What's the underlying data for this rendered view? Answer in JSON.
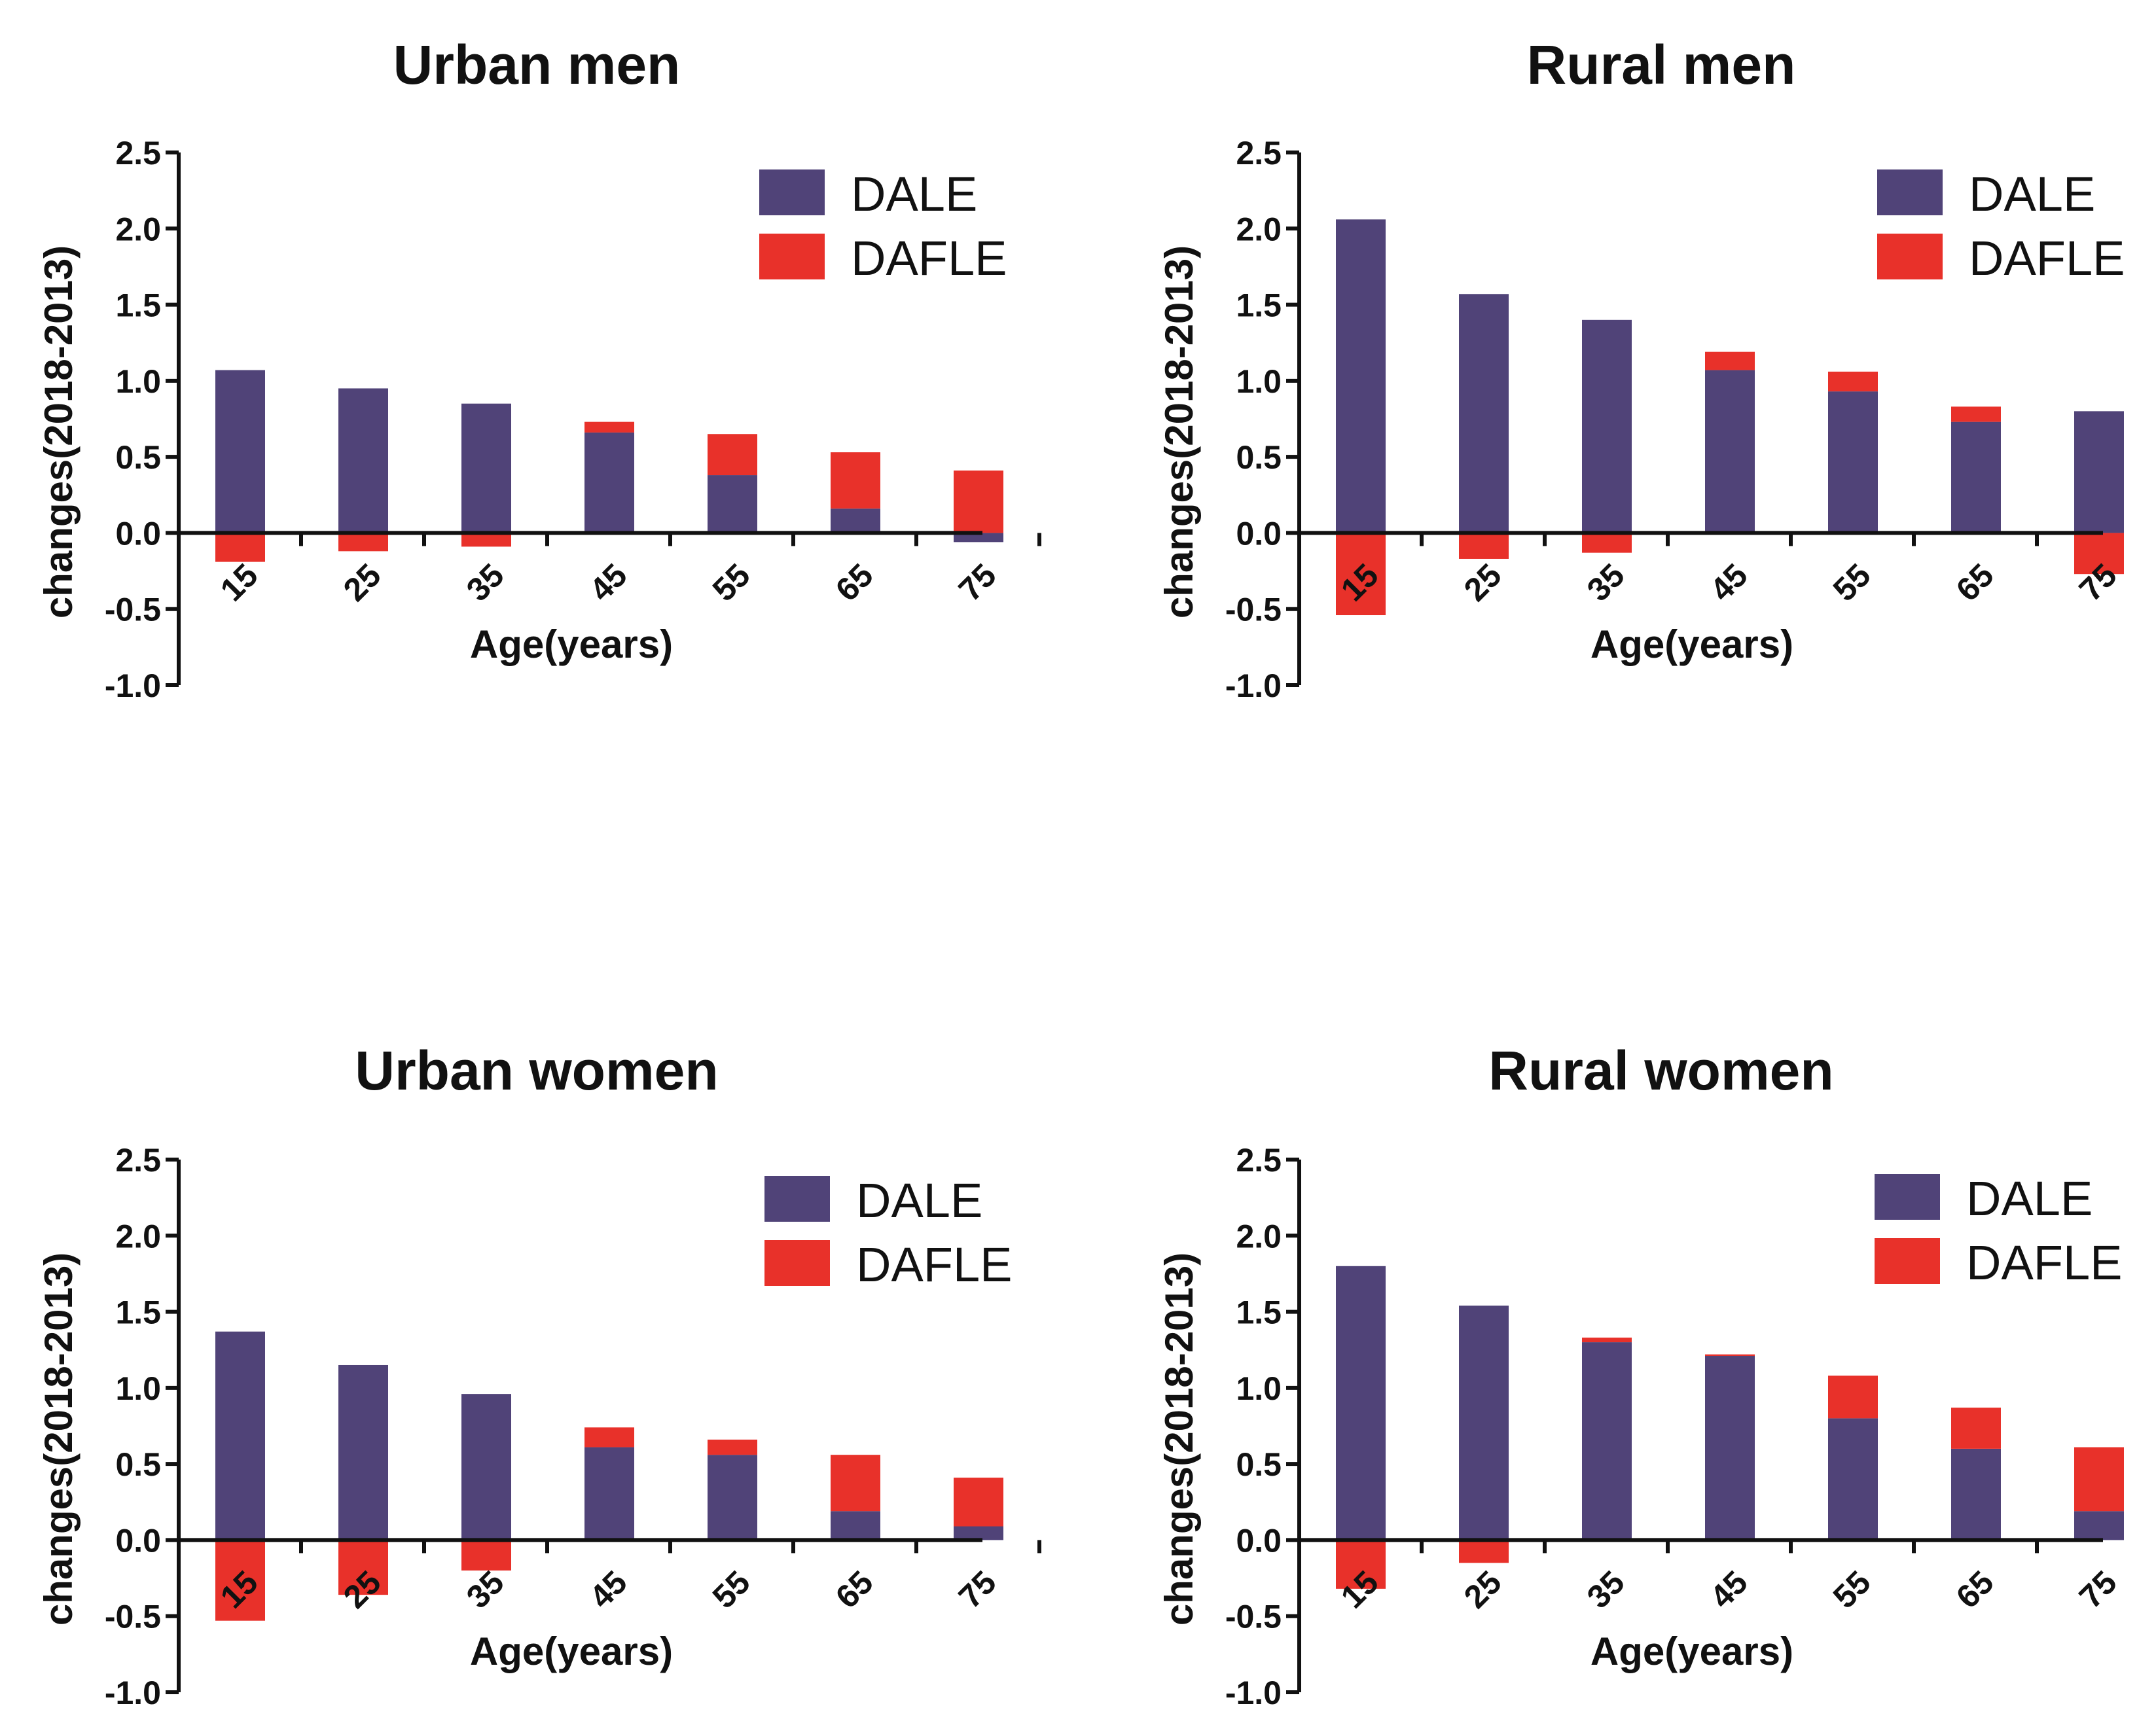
{
  "chart_data": [
    {
      "type": "bar",
      "title": "Urban men",
      "xlabel": "Age(years)",
      "ylabel": "changes(2018-2013)",
      "categories": [
        "15",
        "25",
        "35",
        "45",
        "55",
        "65",
        "75"
      ],
      "ylim": [
        -1.0,
        2.5
      ],
      "yticks": [
        "2.5",
        "2.0",
        "1.5",
        "1.0",
        "0.5",
        "0.0",
        "-0.5",
        "-1.0"
      ],
      "series": [
        {
          "name": "DALE",
          "color": "#504378",
          "values": [
            1.07,
            0.95,
            0.85,
            0.66,
            0.38,
            0.16,
            -0.06
          ]
        },
        {
          "name": "DAFLE",
          "color": "#E8312A",
          "values": [
            -0.19,
            -0.12,
            -0.09,
            0.07,
            0.27,
            0.37,
            0.41
          ]
        }
      ],
      "legend": "top-right"
    },
    {
      "type": "bar",
      "title": "Rural men",
      "xlabel": "Age(years)",
      "ylabel": "changes(2018-2013)",
      "categories": [
        "15",
        "25",
        "35",
        "45",
        "55",
        "65",
        "75"
      ],
      "ylim": [
        -1.0,
        2.5
      ],
      "yticks": [
        "2.5",
        "2.0",
        "1.5",
        "1.0",
        "0.5",
        "0.0",
        "-0.5",
        "-1.0"
      ],
      "series": [
        {
          "name": "DALE",
          "color": "#504378",
          "values": [
            2.06,
            1.57,
            1.4,
            1.07,
            0.93,
            0.73,
            0.8
          ]
        },
        {
          "name": "DAFLE",
          "color": "#E8312A",
          "values": [
            -0.54,
            -0.17,
            -0.13,
            0.12,
            0.13,
            0.1,
            -0.27
          ]
        }
      ],
      "legend": "top-right"
    },
    {
      "type": "bar",
      "title": "Urban women",
      "xlabel": "Age(years)",
      "ylabel": "changes(2018-2013)",
      "categories": [
        "15",
        "25",
        "35",
        "45",
        "55",
        "65",
        "75"
      ],
      "ylim": [
        -1.0,
        2.5
      ],
      "yticks": [
        "2.5",
        "2.0",
        "1.5",
        "1.0",
        "0.5",
        "0.0",
        "-0.5",
        "-1.0"
      ],
      "series": [
        {
          "name": "DALE",
          "color": "#504378",
          "values": [
            1.37,
            1.15,
            0.96,
            0.61,
            0.56,
            0.19,
            0.09
          ]
        },
        {
          "name": "DAFLE",
          "color": "#E8312A",
          "values": [
            -0.53,
            -0.36,
            -0.2,
            0.13,
            0.1,
            0.37,
            0.32
          ]
        }
      ],
      "legend": "top-right"
    },
    {
      "type": "bar",
      "title": "Rural women",
      "xlabel": "Age(years)",
      "ylabel": "changes(2018-2013)",
      "categories": [
        "15",
        "25",
        "35",
        "45",
        "55",
        "65",
        "75"
      ],
      "ylim": [
        -1.0,
        2.5
      ],
      "yticks": [
        "2.5",
        "2.0",
        "1.5",
        "1.0",
        "0.5",
        "0.0",
        "-0.5",
        "-1.0"
      ],
      "series": [
        {
          "name": "DALE",
          "color": "#504378",
          "values": [
            1.8,
            1.54,
            1.3,
            1.21,
            0.8,
            0.6,
            0.19
          ]
        },
        {
          "name": "DAFLE",
          "color": "#E8312A",
          "values": [
            -0.32,
            -0.15,
            0.03,
            0.01,
            0.28,
            0.27,
            0.42
          ]
        }
      ],
      "legend": "top-right"
    }
  ]
}
